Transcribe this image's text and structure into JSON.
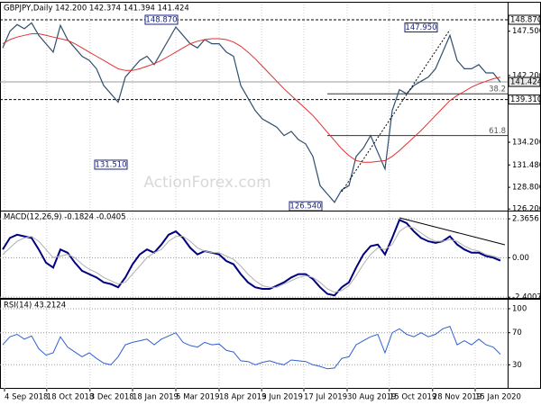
{
  "chart_data": [
    {
      "type": "line",
      "title": "GBPJPY,Daily  142.200 142.374 141.394 141.424",
      "watermark": "ActionForex.com",
      "xlim": [
        0,
        69
      ],
      "ylim": [
        125.9,
        150.7
      ],
      "yticks": [
        {
          "value": 126.2,
          "label": "126.200"
        },
        {
          "value": 128.8,
          "label": "128.800"
        },
        {
          "value": 131.48,
          "label": "131.480"
        },
        {
          "value": 134.2,
          "label": "134.200"
        },
        {
          "value": 142.2,
          "label": "142.200"
        },
        {
          "value": 147.5,
          "label": "147.500"
        }
      ],
      "series": [
        {
          "color": "#2f4f6f",
          "width": 1.2,
          "values": [
            145.5,
            147.5,
            148.3,
            147.8,
            148.5,
            147.0,
            146.0,
            145.0,
            148.2,
            146.5,
            145.5,
            144.5,
            144.0,
            143.0,
            141.0,
            140.0,
            139.0,
            142.0,
            143.0,
            144.0,
            144.5,
            143.5,
            145.0,
            146.5,
            148.0,
            147.0,
            146.0,
            145.5,
            146.5,
            146.0,
            146.0,
            145.0,
            144.5,
            141.0,
            139.5,
            138.0,
            137.0,
            136.5,
            136.0,
            135.0,
            135.5,
            134.5,
            134.0,
            132.5,
            129.0,
            128.0,
            127.0,
            128.5,
            129.0,
            132.5,
            133.5,
            135.0,
            133.0,
            131.0,
            138.0,
            140.5,
            140.0,
            141.0,
            141.5,
            142.0,
            143.0,
            145.0,
            147.0,
            144.0,
            143.0,
            143.0,
            143.5,
            142.5,
            142.5,
            141.4
          ]
        },
        {
          "color": "#e03030",
          "width": 1,
          "values": [
            146,
            146.5,
            146.8,
            147,
            147.2,
            147.2,
            147,
            146.8,
            146.6,
            146.4,
            146,
            145.5,
            145,
            144.5,
            144,
            143.5,
            143,
            142.8,
            142.8,
            143,
            143.3,
            143.6,
            144,
            144.5,
            145,
            145.5,
            146,
            146.3,
            146.5,
            146.6,
            146.6,
            146.5,
            146.2,
            145.7,
            145,
            144.2,
            143.3,
            142.4,
            141.5,
            140.6,
            139.8,
            139,
            138.2,
            137.4,
            136.4,
            135.4,
            134.4,
            133.4,
            132.6,
            132,
            131.8,
            131.8,
            131.9,
            132,
            132.5,
            133.2,
            134,
            134.8,
            135.6,
            136.5,
            137.4,
            138.3,
            139.2,
            139.8,
            140.3,
            140.8,
            141.2,
            141.5,
            141.8,
            142.0
          ]
        }
      ],
      "annotations": [
        {
          "x": 22,
          "value": 148.87,
          "label": "148.870"
        },
        {
          "x": 58,
          "value": 147.95,
          "label": "147.950"
        },
        {
          "x": 15,
          "value": 131.51,
          "label": "131.510"
        },
        {
          "x": 42,
          "value": 126.54,
          "label": "126.540"
        }
      ],
      "price_lines": [
        {
          "value": 148.87,
          "label": "148.870",
          "dashed": true
        },
        {
          "value": 141.424,
          "label": "141.424",
          "dashed": false
        },
        {
          "value": 139.31,
          "label": "139.310",
          "dashed": true
        }
      ],
      "fib_levels": [
        {
          "from": 45,
          "value": 140.0,
          "label": "38.2"
        },
        {
          "from": 45,
          "value": 135.0,
          "label": "61.8"
        }
      ]
    },
    {
      "type": "line",
      "title": "MACD(12,26,9) -0.1824 -0.0405",
      "xlim": [
        0,
        69
      ],
      "ylim": [
        -2.5,
        2.7
      ],
      "grid": true,
      "yticks": [
        2.3656,
        {
          "value": 0,
          "label": "0.00"
        },
        -2.4007
      ],
      "series": [
        {
          "color": "#000080",
          "width": 2,
          "values": [
            0.5,
            1.2,
            1.4,
            1.3,
            1.2,
            0.5,
            -0.3,
            -0.6,
            0.5,
            0.3,
            -0.3,
            -0.8,
            -1.0,
            -1.2,
            -1.5,
            -1.6,
            -1.8,
            -1.2,
            -0.4,
            0.2,
            0.5,
            0.3,
            0.8,
            1.4,
            1.6,
            1.2,
            0.6,
            0.2,
            0.4,
            0.3,
            0.2,
            -0.2,
            -0.4,
            -1.0,
            -1.5,
            -1.8,
            -1.9,
            -1.9,
            -1.7,
            -1.5,
            -1.2,
            -1.0,
            -1.0,
            -1.3,
            -1.8,
            -2.2,
            -2.3,
            -1.8,
            -1.5,
            -0.6,
            0.2,
            0.7,
            0.8,
            0.2,
            1.2,
            2.3,
            2.1,
            1.6,
            1.2,
            1.0,
            0.9,
            1.0,
            1.3,
            0.8,
            0.5,
            0.3,
            0.3,
            0.1,
            0.0,
            -0.18
          ]
        },
        {
          "color": "#b0b0b0",
          "width": 1,
          "values": [
            0.2,
            0.6,
            1.0,
            1.2,
            1.3,
            1.0,
            0.5,
            0.0,
            0.1,
            0.2,
            0.0,
            -0.4,
            -0.7,
            -0.9,
            -1.2,
            -1.4,
            -1.6,
            -1.5,
            -1.0,
            -0.5,
            0.0,
            0.3,
            0.5,
            1.0,
            1.3,
            1.3,
            1.0,
            0.6,
            0.4,
            0.3,
            0.3,
            0.1,
            -0.1,
            -0.5,
            -1.0,
            -1.4,
            -1.7,
            -1.8,
            -1.8,
            -1.6,
            -1.4,
            -1.2,
            -1.1,
            -1.2,
            -1.5,
            -1.9,
            -2.1,
            -2.0,
            -1.7,
            -1.1,
            -0.4,
            0.2,
            0.6,
            0.5,
            0.8,
            1.6,
            1.9,
            1.8,
            1.5,
            1.2,
            1.0,
            1.0,
            1.1,
            1.0,
            0.7,
            0.5,
            0.4,
            0.2,
            0.1,
            -0.04
          ]
        }
      ]
    },
    {
      "type": "line",
      "title": "RSI(14) 43.2124",
      "xlim": [
        0,
        69
      ],
      "ylim": [
        0,
        109
      ],
      "grid": true,
      "yticks": [
        30,
        70,
        100
      ],
      "xticks": [
        {
          "value": 0.25,
          "label": "4 Sep 2018"
        },
        {
          "value": 6.1,
          "label": "18 Oct 2018"
        },
        {
          "value": 12.1,
          "label": "3 Dec 2018"
        },
        {
          "value": 18,
          "label": "18 Jan 2019"
        },
        {
          "value": 24,
          "label": "5 Mar 2019"
        },
        {
          "value": 30,
          "label": "18 Apr 2019"
        },
        {
          "value": 35.9,
          "label": "3 Jun 2019"
        },
        {
          "value": 41.75,
          "label": "17 Jul 2019"
        },
        {
          "value": 47.75,
          "label": "30 Aug 2019"
        },
        {
          "value": 53.6,
          "label": "15 Oct 2019"
        },
        {
          "value": 59.6,
          "label": "28 Nov 2019"
        },
        {
          "value": 65.5,
          "label": "15 Jan 2020"
        }
      ],
      "series": [
        {
          "color": "#3060d0",
          "width": 1,
          "values": [
            55,
            65,
            68,
            62,
            66,
            50,
            42,
            45,
            65,
            52,
            46,
            40,
            45,
            38,
            32,
            30,
            40,
            55,
            58,
            60,
            62,
            55,
            62,
            66,
            70,
            58,
            54,
            52,
            58,
            55,
            56,
            48,
            46,
            35,
            34,
            30,
            33,
            35,
            32,
            30,
            36,
            35,
            34,
            30,
            28,
            25,
            26,
            38,
            40,
            55,
            60,
            65,
            68,
            45,
            70,
            75,
            68,
            65,
            70,
            65,
            68,
            75,
            78,
            55,
            60,
            55,
            62,
            55,
            52,
            43.2
          ]
        }
      ]
    }
  ]
}
